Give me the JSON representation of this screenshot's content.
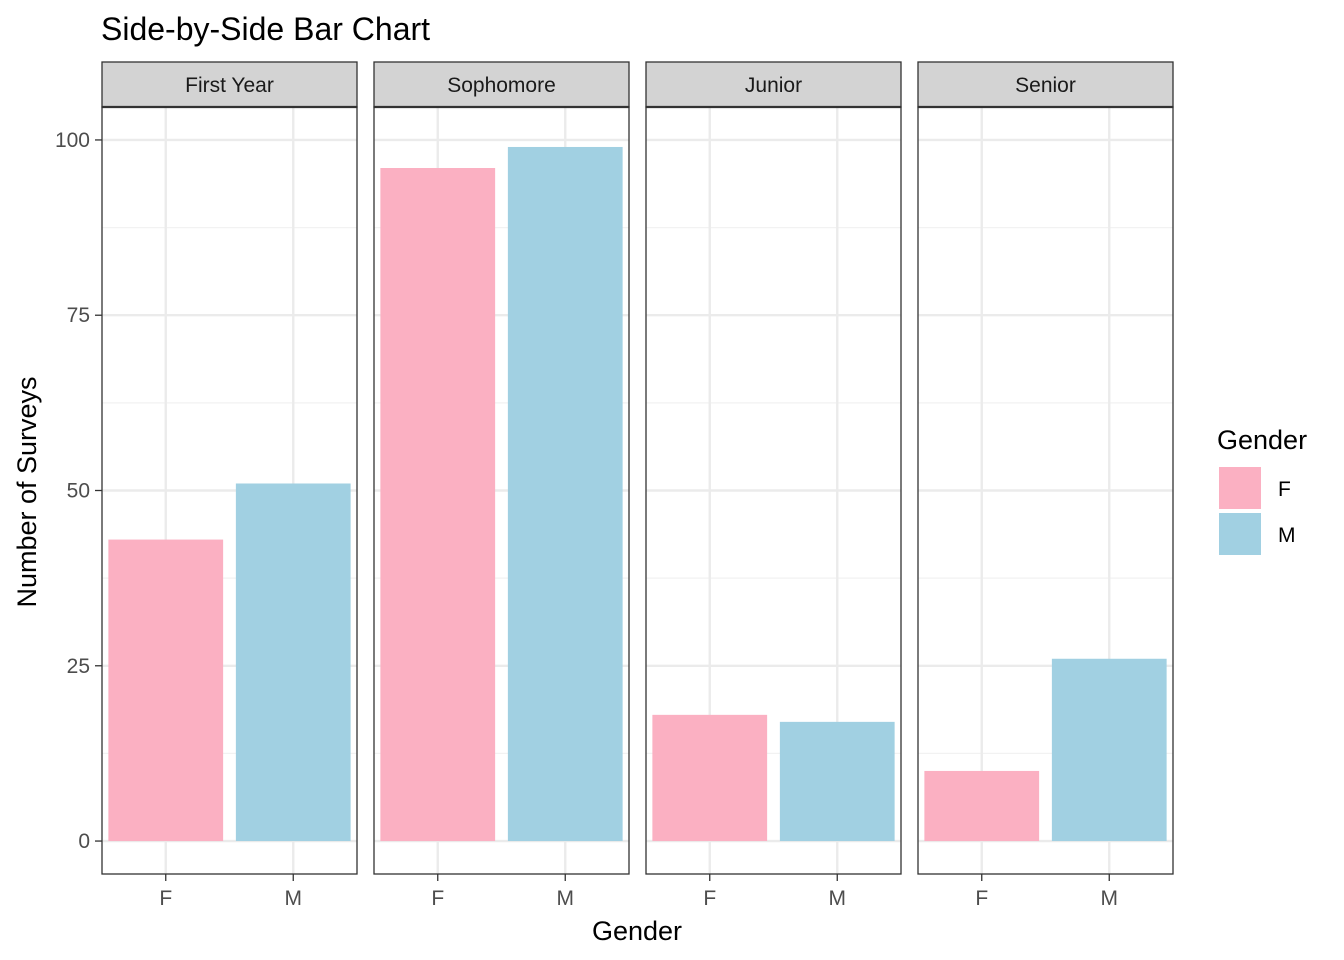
{
  "chart_data": {
    "type": "bar",
    "title": "Side-by-Side Bar Chart",
    "xlabel": "Gender",
    "ylabel": "Number of Surveys",
    "ylim": [
      -4.7,
      104.7
    ],
    "yticks": [
      0,
      25,
      50,
      75,
      100
    ],
    "grid": true,
    "categories": [
      "F",
      "M"
    ],
    "facets": [
      {
        "name": "First Year",
        "values": [
          43,
          51
        ]
      },
      {
        "name": "Sophomore",
        "values": [
          96,
          99
        ]
      },
      {
        "name": "Junior",
        "values": [
          18,
          17
        ]
      },
      {
        "name": "Senior",
        "values": [
          10,
          26
        ]
      }
    ],
    "legend": {
      "title": "Gender",
      "position": "right",
      "entries": [
        "F",
        "M"
      ]
    },
    "colors": {
      "F": "#FBB0C2",
      "M": "#A1D0E2"
    }
  }
}
